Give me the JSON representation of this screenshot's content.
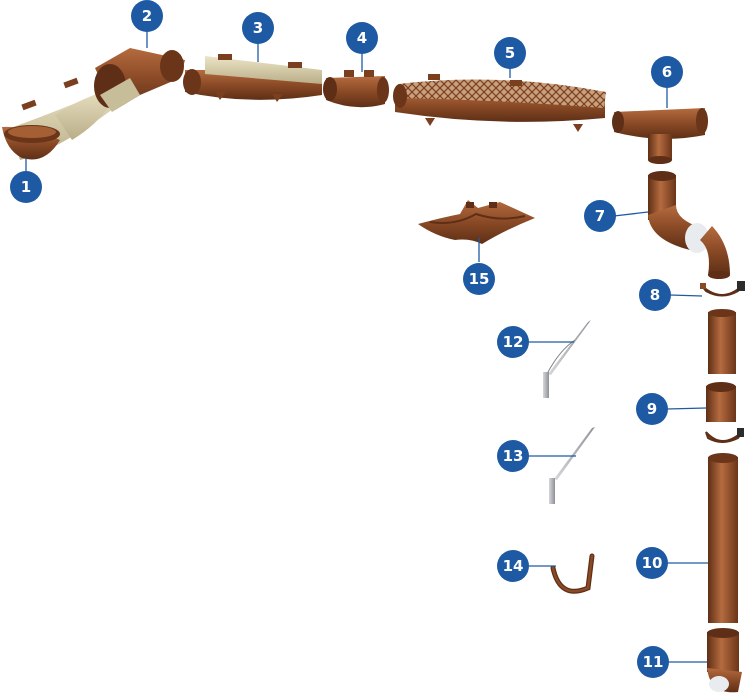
{
  "colors": {
    "badge": "#1e5aa3",
    "leader": "#1e5aa3",
    "gutter_brown": "#8a4a26",
    "gutter_dark": "#5e2f16",
    "gutter_light": "#b56b3f",
    "steel": "#b9bcc0",
    "steel_dark": "#7d8186",
    "liner": "#d8cfb0"
  },
  "labels": [
    {
      "id": "1",
      "text": "1",
      "part": "gutter-end-cap-icon"
    },
    {
      "id": "2",
      "text": "2",
      "part": "corner-angle-icon"
    },
    {
      "id": "3",
      "text": "3",
      "part": "gutter-section-icon"
    },
    {
      "id": "4",
      "text": "4",
      "part": "gutter-connector-icon"
    },
    {
      "id": "5",
      "text": "5",
      "part": "gutter-mesh-guard-icon"
    },
    {
      "id": "6",
      "text": "6",
      "part": "gutter-outlet-funnel-icon"
    },
    {
      "id": "7",
      "text": "7",
      "part": "downpipe-elbow-icon"
    },
    {
      "id": "8",
      "text": "8",
      "part": "pipe-clamp-icon"
    },
    {
      "id": "9",
      "text": "9",
      "part": "pipe-coupling-icon"
    },
    {
      "id": "10",
      "text": "10",
      "part": "downpipe-icon"
    },
    {
      "id": "11",
      "text": "11",
      "part": "drain-elbow-icon"
    },
    {
      "id": "12",
      "text": "12",
      "part": "long-hook-bracket-icon"
    },
    {
      "id": "13",
      "text": "13",
      "part": "short-hook-bracket-icon"
    },
    {
      "id": "14",
      "text": "14",
      "part": "gutter-hanger-icon"
    },
    {
      "id": "15",
      "text": "15",
      "part": "inner-corner-icon"
    }
  ]
}
